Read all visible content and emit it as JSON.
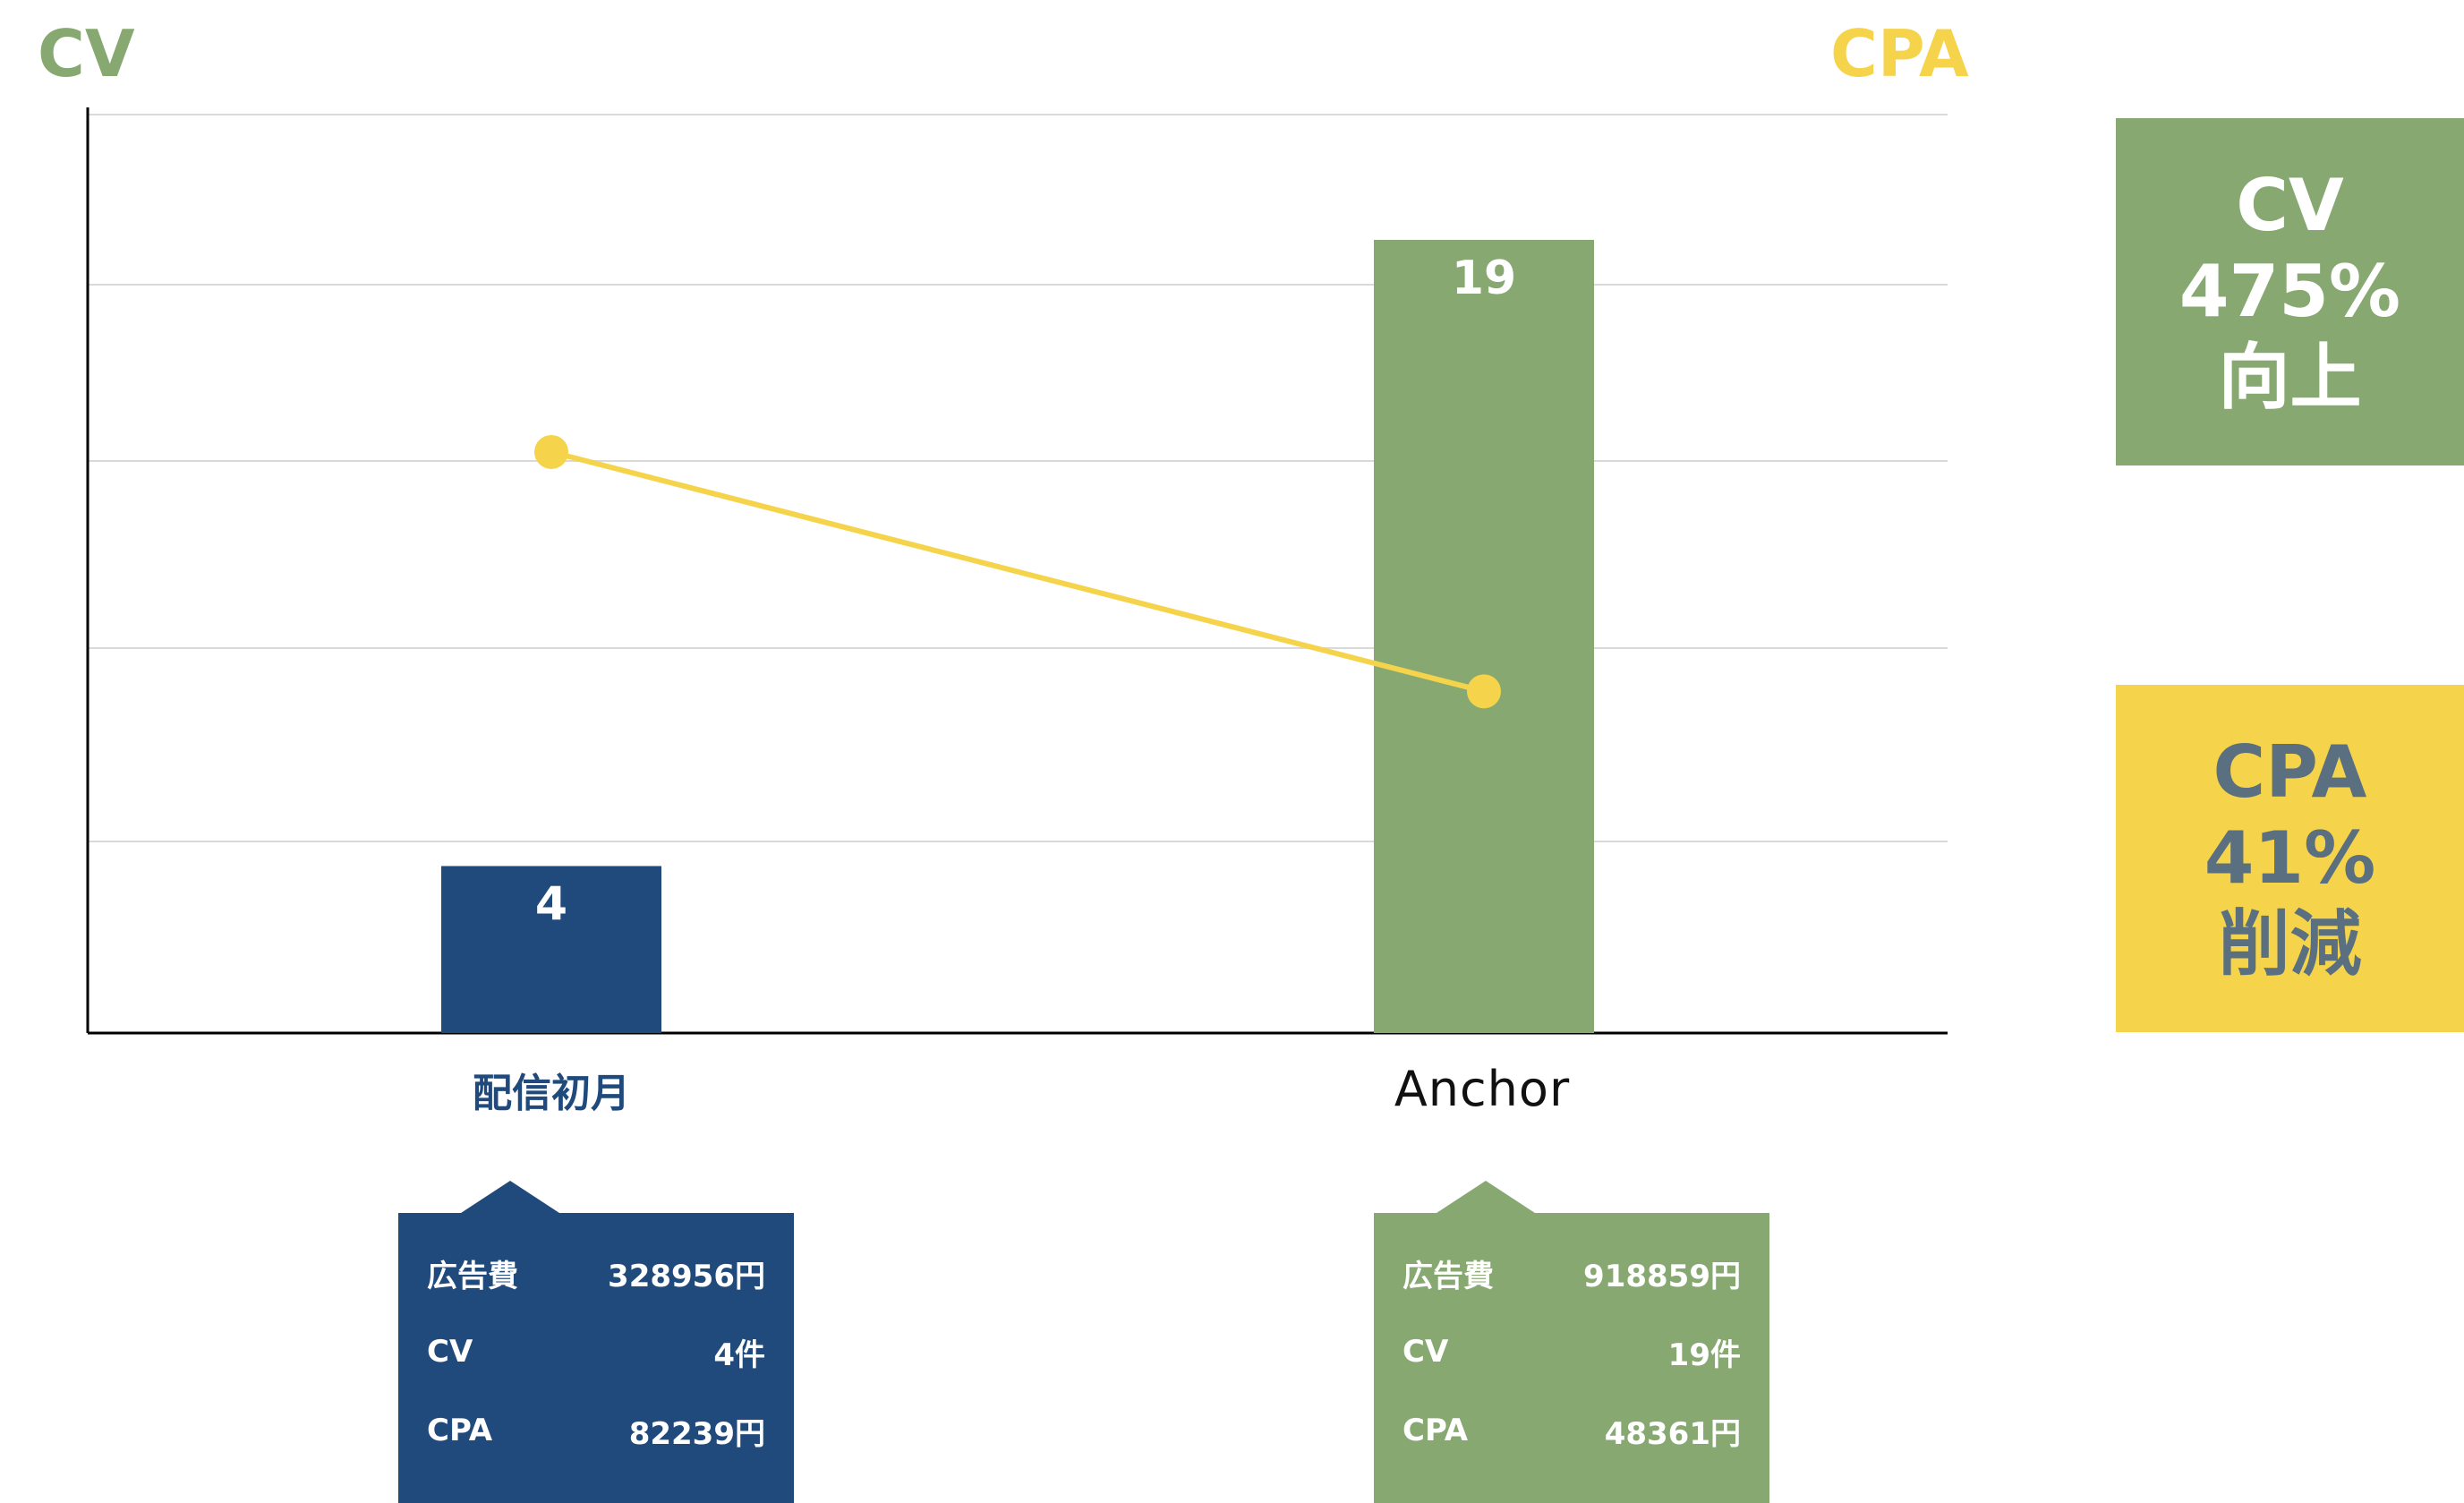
{
  "colors": {
    "cv_green": "#87A971",
    "cpa_yellow": "#F5D44B",
    "navy": "#20497C",
    "kpi_text_gray": "#5A6F7F"
  },
  "axis_titles": {
    "left": "CV",
    "right": "CPA"
  },
  "chart_data": {
    "type": "bar",
    "categories": [
      "配信初月",
      "Anchor"
    ],
    "series": [
      {
        "type": "bar",
        "values": [
          4,
          19
        ],
        "data_labels": [
          "4",
          "19"
        ],
        "colors": [
          "#20497C",
          "#87A971"
        ]
      },
      {
        "type": "line",
        "values": [
          82239,
          48361
        ],
        "color": "#F5D44B"
      }
    ],
    "ylim": [
      0,
      22
    ],
    "y2lim": [
      0,
      130000
    ],
    "grid": true,
    "legend": "none"
  },
  "callouts": [
    {
      "rows": [
        {
          "label": "広告費",
          "value": "328956円"
        },
        {
          "label": "CV",
          "value": "4件"
        },
        {
          "label": "CPA",
          "value": "82239円"
        }
      ]
    },
    {
      "rows": [
        {
          "label": "広告費",
          "value": "918859円"
        },
        {
          "label": "CV",
          "value": "19件"
        },
        {
          "label": "CPA",
          "value": "48361円"
        }
      ]
    }
  ],
  "kpis": {
    "cv": {
      "line1": "CV",
      "line2": "475%",
      "line3": "向上"
    },
    "cpa": {
      "line1": "CPA",
      "line2": "41%",
      "line3": "削減"
    }
  }
}
